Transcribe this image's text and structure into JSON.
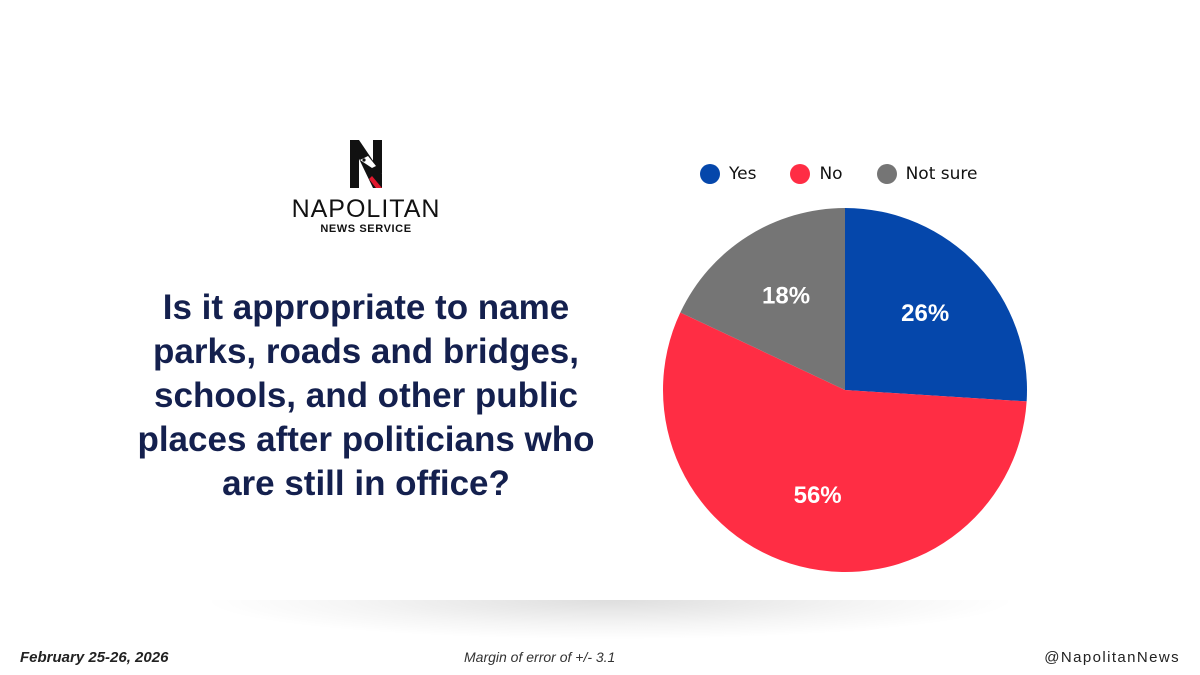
{
  "logo": {
    "name": "NAPOLITAN",
    "subtitle": "NEWS SERVICE",
    "mark_icon": "n-eagle-icon"
  },
  "question": "Is it appropriate to name parks, roads and bridges, schools, and other public places after politicians who are still in office?",
  "chart_data": {
    "type": "pie",
    "title": "",
    "legend_position": "top",
    "categories": [
      "Yes",
      "No",
      "Not sure"
    ],
    "values": [
      26,
      56,
      18
    ],
    "labels": [
      "26%",
      "56%",
      "18%"
    ],
    "colors": [
      "#0547ab",
      "#ff2d44",
      "#757575"
    ],
    "label_color": "#ffffff"
  },
  "footer": {
    "date": "February 25-26, 2026",
    "margin_of_error": "Margin of error of +/- 3.1",
    "handle": "@NapolitanNews"
  }
}
